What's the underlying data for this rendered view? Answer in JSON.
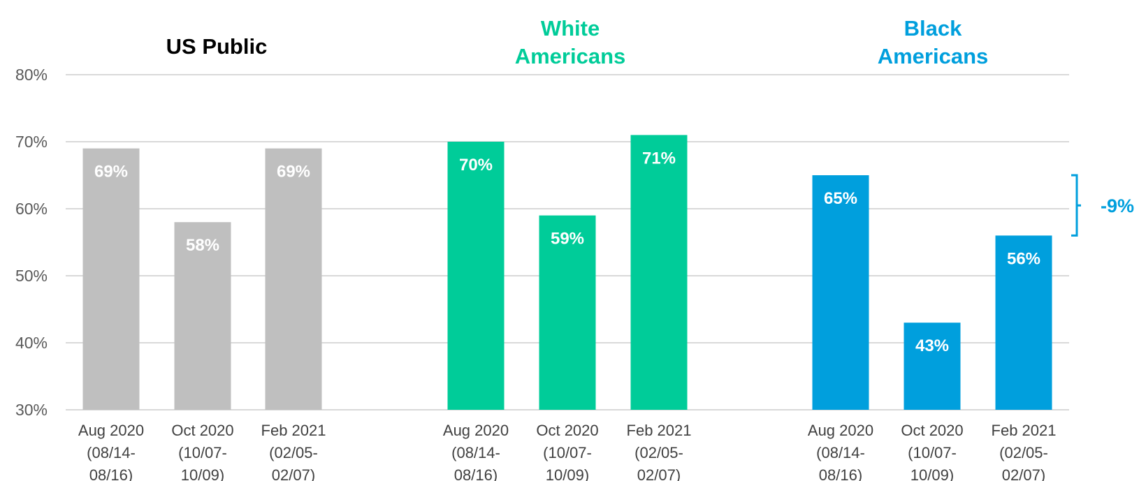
{
  "chart_data": {
    "type": "bar",
    "ylim": [
      30,
      80
    ],
    "yticks": [
      "30%",
      "40%",
      "50%",
      "60%",
      "70%",
      "80%"
    ],
    "grid": true,
    "categories": [
      [
        "Aug 2020",
        "(08/14-",
        "08/16)"
      ],
      [
        "Oct 2020",
        "(10/07-",
        "10/09)"
      ],
      [
        "Feb 2021",
        "(02/05-",
        "02/07)"
      ]
    ],
    "groups": [
      {
        "title": [
          "US Public"
        ],
        "color": "#BFBFBF",
        "title_color": "#000000",
        "values": [
          69,
          58,
          69
        ],
        "labels": [
          "69%",
          "58%",
          "69%"
        ]
      },
      {
        "title": [
          "White",
          "Americans"
        ],
        "color": "#00CC99",
        "title_color": "#00CC99",
        "values": [
          70,
          59,
          71
        ],
        "labels": [
          "70%",
          "59%",
          "71%"
        ]
      },
      {
        "title": [
          "Black",
          "Americans"
        ],
        "color": "#009FDD",
        "title_color": "#009FDD",
        "values": [
          65,
          43,
          56
        ],
        "labels": [
          "65%",
          "43%",
          "56%"
        ]
      }
    ],
    "annotation": {
      "text": "-9%",
      "color": "#009FDD",
      "from": 65,
      "to": 56
    }
  }
}
